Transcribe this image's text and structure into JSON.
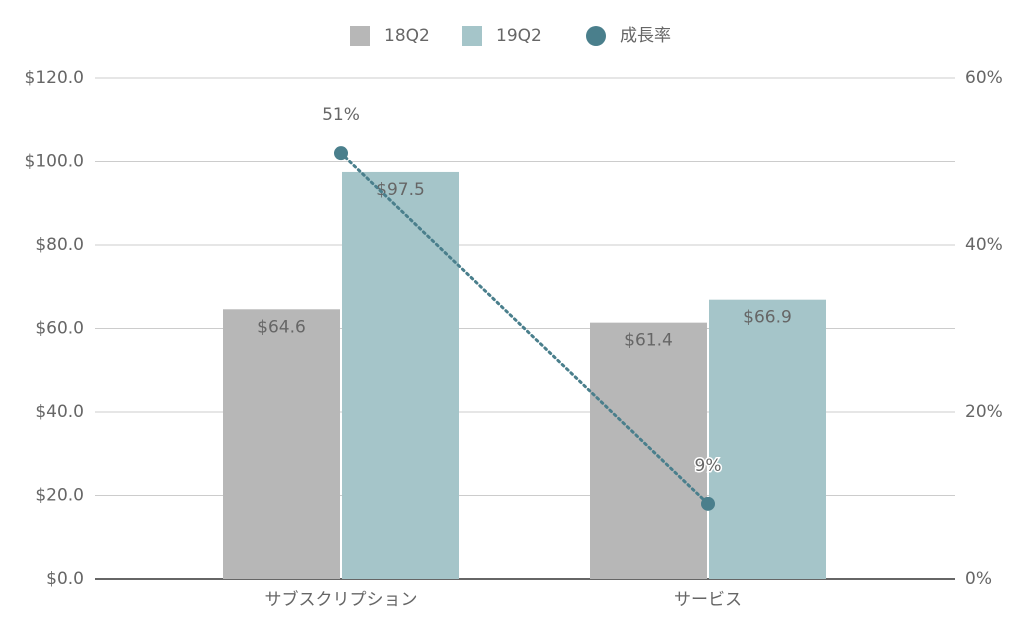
{
  "chart_data": {
    "type": "bar",
    "categories": [
      "サブスクリプション",
      "サービス"
    ],
    "series": [
      {
        "name": "18Q2",
        "type": "bar",
        "color": "#b7b7b7",
        "values": [
          64.6,
          61.4
        ],
        "value_labels": [
          "$64.6",
          "$61.4"
        ]
      },
      {
        "name": "19Q2",
        "type": "bar",
        "color": "#a5c5c9",
        "values": [
          97.5,
          66.9
        ],
        "value_labels": [
          "$97.5",
          "$66.9"
        ]
      },
      {
        "name": "成長率",
        "type": "line",
        "axis": "y2",
        "color": "#4a7f8c",
        "values": [
          51,
          9
        ],
        "value_labels": [
          "51%",
          "9%"
        ]
      }
    ],
    "ylim": [
      0,
      120
    ],
    "yticks": [
      {
        "value": 0,
        "label": "$0.0"
      },
      {
        "value": 20,
        "label": "$20.0"
      },
      {
        "value": 40,
        "label": "$40.0"
      },
      {
        "value": 60,
        "label": "$60.0"
      },
      {
        "value": 80,
        "label": "$80.0"
      },
      {
        "value": 100,
        "label": "$100.0"
      },
      {
        "value": 120,
        "label": "$120.0"
      }
    ],
    "y2lim": [
      0,
      60
    ],
    "y2ticks": [
      {
        "value": 0,
        "label": "0%"
      },
      {
        "value": 20,
        "label": "20%"
      },
      {
        "value": 40,
        "label": "40%"
      },
      {
        "value": 60,
        "label": "60%"
      }
    ],
    "grid": true
  }
}
